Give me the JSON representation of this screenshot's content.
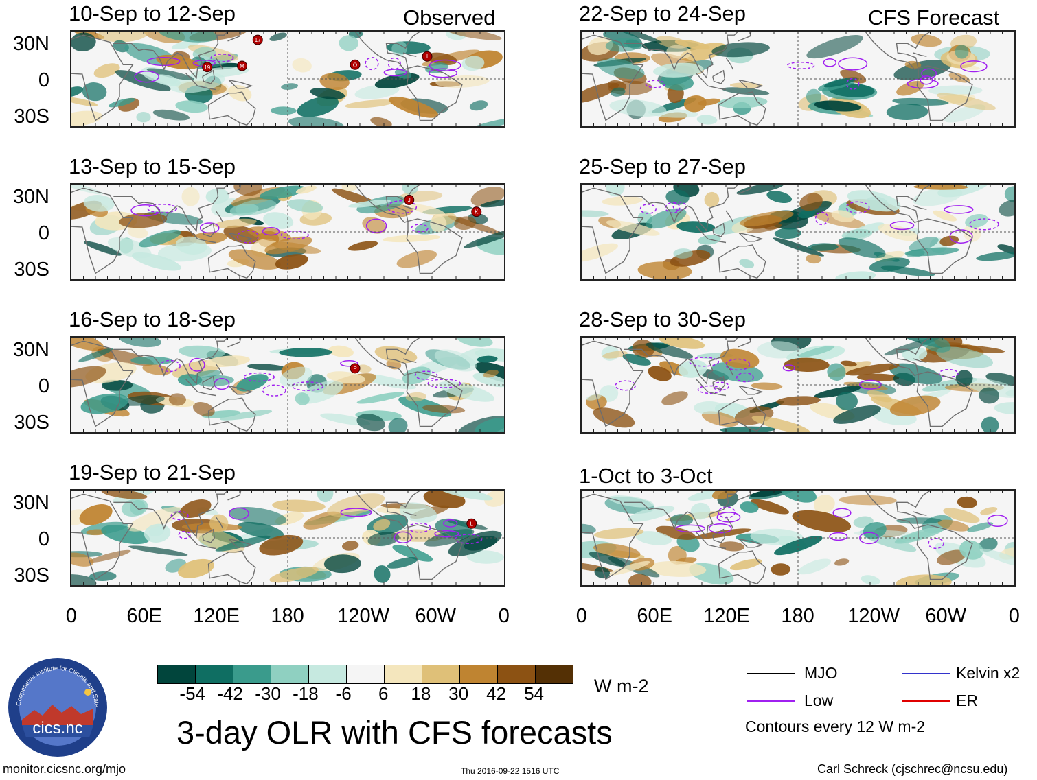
{
  "chart_data": {
    "type": "heatmap",
    "title": "3-day OLR with CFS forecasts",
    "units": "W m-2",
    "contour_note": "Contours every 12 W m-2",
    "colorbar": {
      "ticks": [
        "-54",
        "-42",
        "-30",
        "-18",
        "-6",
        "6",
        "18",
        "30",
        "42",
        "54"
      ],
      "colors": [
        "#01453c",
        "#0f6e62",
        "#3a9b8c",
        "#8fd0c1",
        "#c6e9e0",
        "#f5f5f5",
        "#f4e6bd",
        "#dfc078",
        "#bf8431",
        "#8c5213",
        "#543005"
      ]
    },
    "lat_ticks": [
      "30N",
      "0",
      "30S"
    ],
    "lon_ticks": [
      "0",
      "60E",
      "120E",
      "180",
      "120W",
      "60W",
      "0"
    ],
    "legend": [
      {
        "label": "MJO",
        "color": "#000000"
      },
      {
        "label": "Kelvin x2",
        "color": "#3333cc"
      },
      {
        "label": "Low",
        "color": "#a020f0"
      },
      {
        "label": "ER",
        "color": "#e00000"
      }
    ],
    "columns": [
      {
        "tag": "Observed",
        "panels": [
          {
            "title": "10-Sep to 12-Sep",
            "storms": [
              "17",
              "19",
              "M",
              "O",
              "I"
            ]
          },
          {
            "title": "13-Sep to 15-Sep",
            "storms": [
              "J",
              "K"
            ]
          },
          {
            "title": "16-Sep to 18-Sep",
            "storms": [
              "P"
            ]
          },
          {
            "title": "19-Sep to 21-Sep",
            "storms": [
              "L"
            ]
          }
        ]
      },
      {
        "tag": "CFS Forecast",
        "panels": [
          {
            "title": "22-Sep to 24-Sep",
            "storms": []
          },
          {
            "title": "25-Sep to 27-Sep",
            "storms": []
          },
          {
            "title": "28-Sep to 30-Sep",
            "storms": []
          },
          {
            "title": "1-Oct to 3-Oct",
            "storms": []
          }
        ]
      }
    ]
  },
  "logo": {
    "text": "cics.nc",
    "ring_text": "Cooperative Institute for Climate and Satellites"
  },
  "footer": {
    "url": "monitor.cicsnc.org/mjo",
    "timestamp": "Thu 2016-09-22 1516 UTC",
    "author": "Carl Schreck (cjschrec@ncsu.edu)"
  }
}
